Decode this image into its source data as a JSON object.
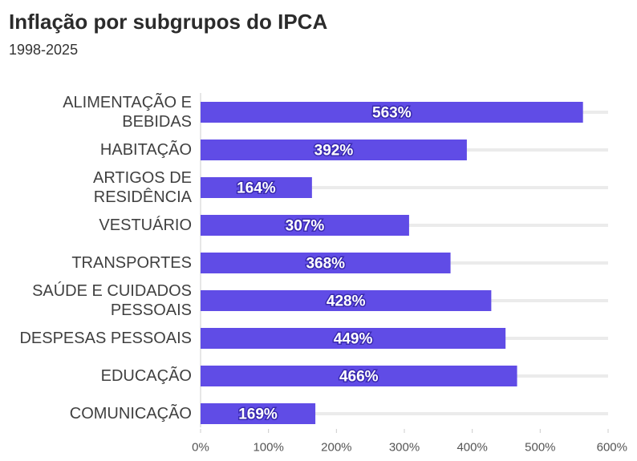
{
  "title": "Inflação por subgrupos do IPCA",
  "subtitle": "1998-2025",
  "colors": {
    "bar": "#604CE6",
    "track": "#ebebeb",
    "axis": "#cccccc"
  },
  "chart_data": {
    "type": "bar",
    "orientation": "horizontal",
    "categories": [
      [
        "ALIMENTAÇÃO E",
        "BEBIDAS"
      ],
      [
        "HABITAÇÃO"
      ],
      [
        "ARTIGOS DE",
        "RESIDÊNCIA"
      ],
      [
        "VESTUÁRIO"
      ],
      [
        "TRANSPORTES"
      ],
      [
        "SAÚDE E CUIDADOS",
        "PESSOAIS"
      ],
      [
        "DESPESAS PESSOAIS"
      ],
      [
        "EDUCAÇÃO"
      ],
      [
        "COMUNICAÇÃO"
      ]
    ],
    "values": [
      563,
      392,
      164,
      307,
      368,
      428,
      449,
      466,
      169
    ],
    "value_labels": [
      "563%",
      "392%",
      "164%",
      "307%",
      "368%",
      "428%",
      "449%",
      "466%",
      "169%"
    ],
    "xlim": [
      0,
      600
    ],
    "xticks": [
      0,
      100,
      200,
      300,
      400,
      500,
      600
    ],
    "xtick_labels": [
      "0%",
      "100%",
      "200%",
      "300%",
      "400%",
      "500%",
      "600%"
    ],
    "grid": false
  }
}
